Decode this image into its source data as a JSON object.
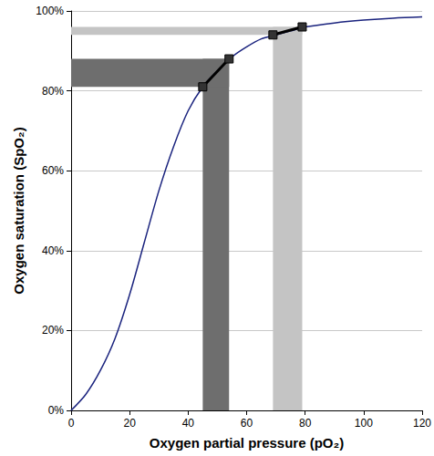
{
  "chart_data": {
    "type": "line",
    "x_label": "Oxygen partial pressure (pO₂)",
    "y_label": "Oxygen saturation (SpO₂)",
    "xlim": [
      0,
      120
    ],
    "xticks": [
      0,
      20,
      40,
      60,
      80,
      100,
      120
    ],
    "ylim": [
      0,
      100
    ],
    "yticks": [
      {
        "value": 0,
        "label": "0%"
      },
      {
        "value": 20,
        "label": "20%"
      },
      {
        "value": 40,
        "label": "40%"
      },
      {
        "value": 60,
        "label": "60%"
      },
      {
        "value": 80,
        "label": "80%"
      },
      {
        "value": 100,
        "label": "100%"
      }
    ],
    "grid": true,
    "bands": [
      {
        "x": [
          45,
          54
        ],
        "y": [
          81,
          88
        ],
        "color": "#6e6e6e"
      },
      {
        "x": [
          69,
          79
        ],
        "y": [
          94,
          96
        ],
        "color": "#c4c4c4"
      }
    ],
    "series": [
      {
        "x": [
          0,
          5,
          10,
          15,
          20,
          25,
          30,
          35,
          40,
          45,
          50,
          55,
          60,
          65,
          70,
          75,
          80,
          90,
          100,
          110,
          120
        ],
        "values": [
          0,
          4,
          10,
          18,
          29,
          42,
          55,
          66,
          75,
          81,
          85,
          88.5,
          91,
          93,
          94,
          95,
          96,
          97,
          97.7,
          98.2,
          98.5
        ],
        "color": "#1a237e",
        "marker": "none",
        "line_style": "solid"
      },
      {
        "x": [
          45,
          54
        ],
        "values": [
          81,
          88
        ],
        "color": "#000000",
        "marker": "square",
        "line_style": "solid"
      },
      {
        "x": [
          69,
          79
        ],
        "values": [
          94,
          96
        ],
        "color": "#000000",
        "marker": "square",
        "line_style": "solid"
      }
    ]
  }
}
